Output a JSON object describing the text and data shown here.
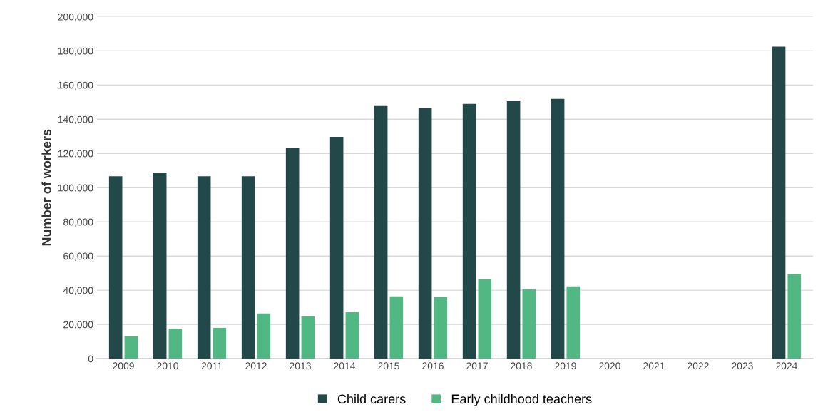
{
  "chart_data": {
    "type": "bar",
    "ylabel": "Number of workers",
    "categories": [
      "2009",
      "2010",
      "2011",
      "2012",
      "2013",
      "2014",
      "2015",
      "2016",
      "2017",
      "2018",
      "2019",
      "2020",
      "2021",
      "2022",
      "2023",
      "2024"
    ],
    "series": [
      {
        "name": "Child carers",
        "color": "#23484a",
        "values": [
          106700,
          108800,
          106700,
          106700,
          123000,
          129700,
          147700,
          146400,
          149000,
          150600,
          151900,
          null,
          null,
          null,
          null,
          182400
        ]
      },
      {
        "name": "Early childhood teachers",
        "color": "#52b883",
        "values": [
          13000,
          17600,
          18000,
          26400,
          24700,
          27200,
          36400,
          36000,
          46400,
          40600,
          42300,
          null,
          null,
          null,
          null,
          49400
        ]
      }
    ],
    "ylim": [
      0,
      200000
    ],
    "yticks": [
      {
        "value": 0,
        "label": "0"
      },
      {
        "value": 20000,
        "label": "20,000"
      },
      {
        "value": 40000,
        "label": "40,000"
      },
      {
        "value": 60000,
        "label": "60,000"
      },
      {
        "value": 80000,
        "label": "80,000"
      },
      {
        "value": 100000,
        "label": "100,000"
      },
      {
        "value": 120000,
        "label": "120,000"
      },
      {
        "value": 140000,
        "label": "140,000"
      },
      {
        "value": 160000,
        "label": "160,000"
      },
      {
        "value": 180000,
        "label": "180,000"
      },
      {
        "value": 200000,
        "label": "200,000"
      }
    ],
    "grid": "y",
    "legend": "bottom"
  }
}
